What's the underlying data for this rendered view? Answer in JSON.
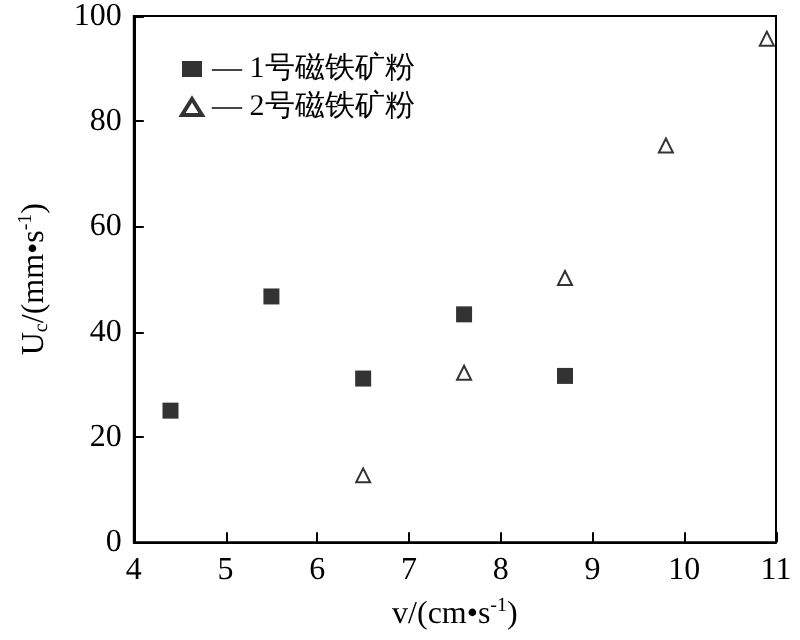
{
  "chart_data": {
    "type": "scatter",
    "xlabel": "v/(cm•s$^{-1}$)",
    "ylabel": "U$_{c}$/(mm•s$^{-1}$)",
    "xlim": [
      4,
      11
    ],
    "xticks": [
      4,
      5,
      6,
      7,
      8,
      9,
      10,
      11
    ],
    "ylim": [
      0,
      100
    ],
    "yticks": [
      0,
      20,
      40,
      60,
      80,
      100
    ],
    "grid": false,
    "legend": "top left",
    "series": [
      {
        "name": "— 1号磁铁矿粉",
        "color": "#000000",
        "marker": "square",
        "x": [
          4.4,
          5.5,
          6.5,
          7.6,
          8.7
        ],
        "values": [
          25,
          46.7,
          31.1,
          43.3,
          31.6
        ]
      },
      {
        "name": "— 2号磁铁矿粉",
        "color": "#000000",
        "marker": "triangle",
        "x": [
          6.5,
          7.6,
          8.7,
          9.8,
          10.9
        ],
        "values": [
          12.7,
          32.2,
          50.2,
          75.4,
          95.7
        ]
      }
    ]
  }
}
